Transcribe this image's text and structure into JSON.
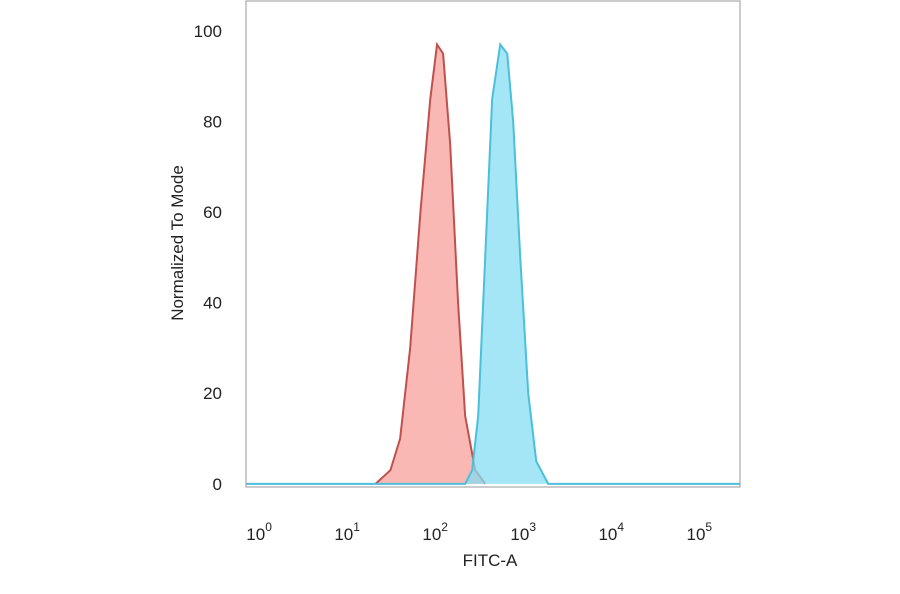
{
  "chart_data": {
    "type": "histogram-overlay",
    "x_label": "FITC-A",
    "y_label": "Normalized To Mode",
    "xscale": "log",
    "xlim": [
      0.71,
      290000
    ],
    "xticks": [
      {
        "value": 1,
        "label": "10",
        "exp": "0"
      },
      {
        "value": 10,
        "label": "10",
        "exp": "1"
      },
      {
        "value": 100,
        "label": "10",
        "exp": "2"
      },
      {
        "value": 1000,
        "label": "10",
        "exp": "3"
      },
      {
        "value": 10000,
        "label": "10",
        "exp": "4"
      },
      {
        "value": 100000,
        "label": "10",
        "exp": "5"
      }
    ],
    "ylim": [
      -0.7,
      106.6
    ],
    "yticks": [
      0,
      20,
      40,
      60,
      80,
      100
    ],
    "series": [
      {
        "color": "#c0504d",
        "fill": "#f8a09b",
        "x": [
          21,
          31,
          40,
          52,
          68,
          88,
          105,
          123,
          148,
          182,
          219,
          285,
          370
        ],
        "values": [
          0,
          3,
          10,
          30,
          60,
          85,
          97,
          95,
          75,
          40,
          15,
          3,
          0
        ]
      },
      {
        "color": "#4bbfdc",
        "fill": "#86dcf3",
        "x": [
          0.71,
          219,
          263,
          308,
          370,
          444,
          548,
          658,
          769,
          925,
          1140,
          1406,
          1923,
          290000
        ],
        "values": [
          0,
          0,
          3,
          15,
          50,
          85,
          97,
          95,
          80,
          50,
          20,
          5,
          0,
          0
        ]
      }
    ]
  }
}
